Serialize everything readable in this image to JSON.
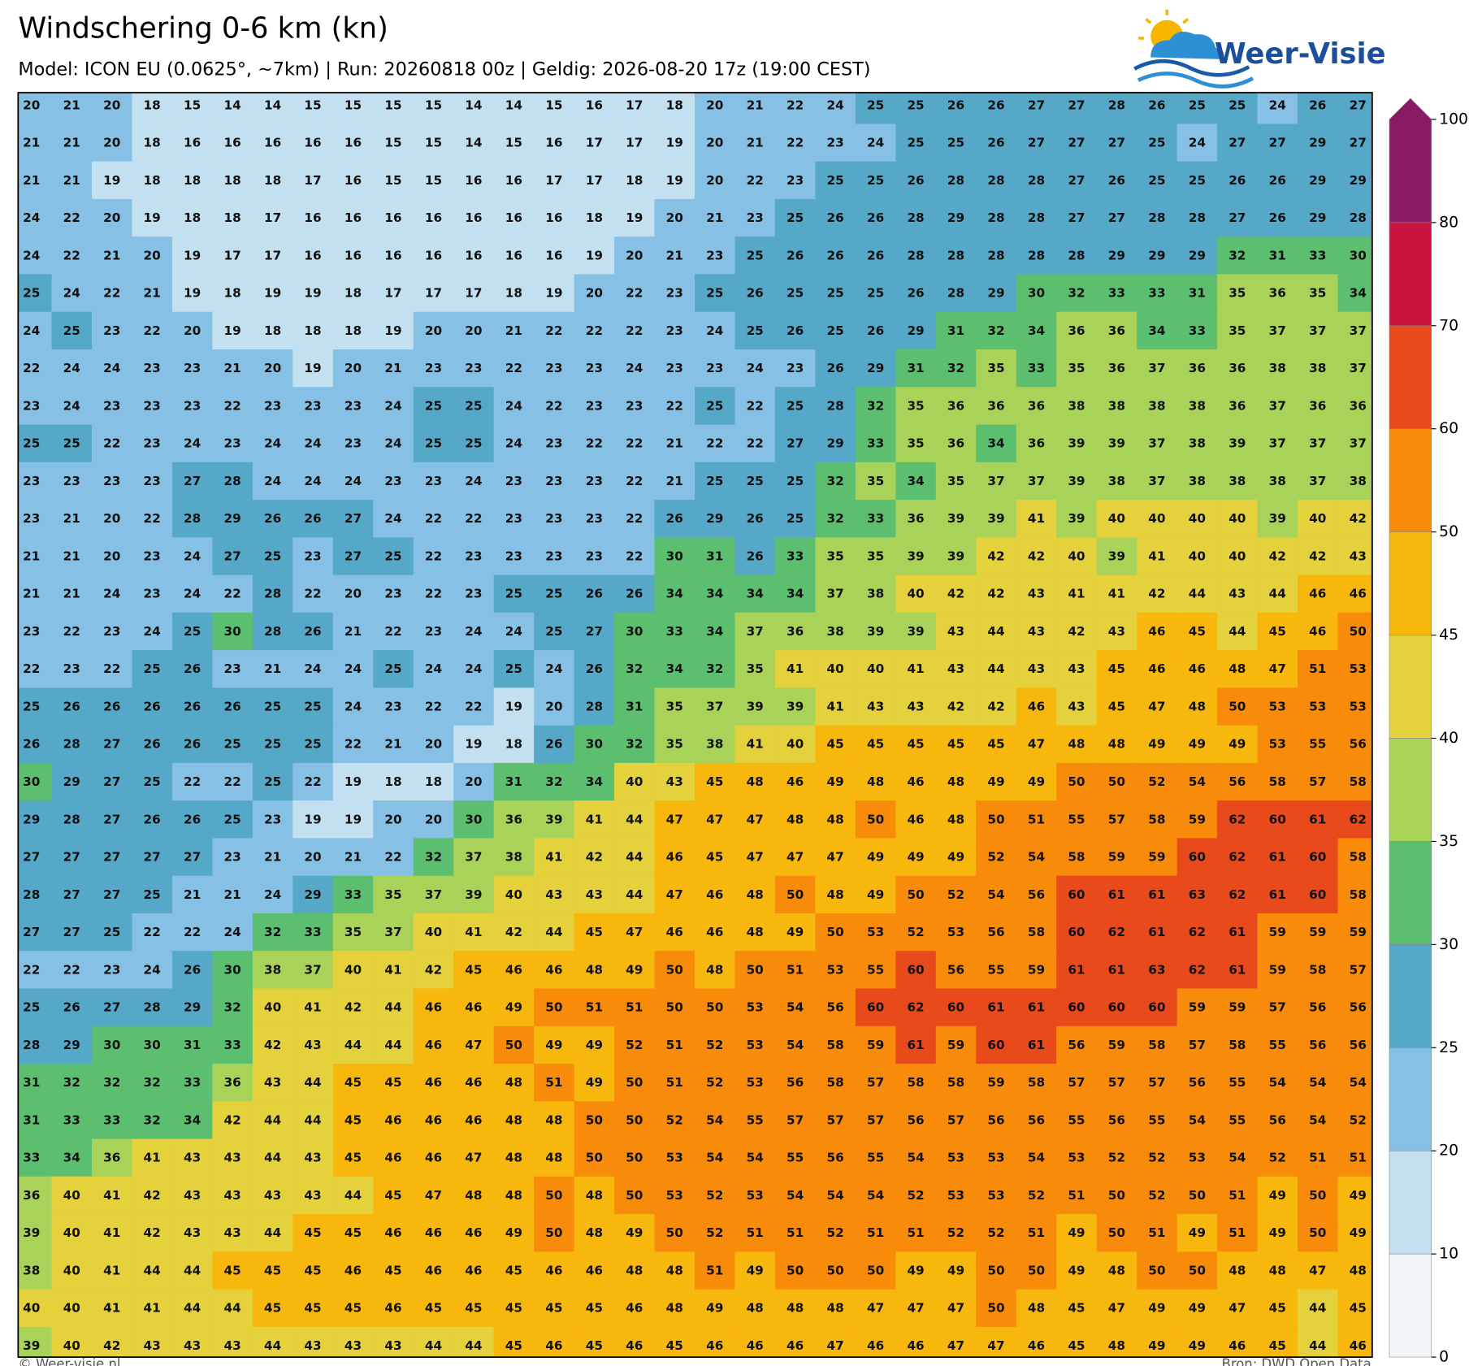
{
  "title": "Windschering 0-6 km (kn)",
  "subtitle": "Model: ICON EU (0.0625°, ~7km)  |  Run: 20260818 00z  |  Geldig: 2026-08-20 17z (19:00 CEST)",
  "logo": "Weer-Visie",
  "footer_left": "© Weer-visie.nl",
  "footer_right": "Bron: DWD Open Data",
  "colorbar": {
    "levels": [
      0,
      10,
      20,
      25,
      30,
      35,
      40,
      45,
      50,
      60,
      70,
      80,
      100
    ],
    "colors": [
      "#f2f6fa",
      "#c3e0f1",
      "#86c0e4",
      "#56a8c8",
      "#5cbf6f",
      "#a9d258",
      "#e4d13b",
      "#f8b70d",
      "#f98b0b",
      "#e94a1b",
      "#c8143f",
      "#8b1a63"
    ]
  },
  "grid": [
    [
      20,
      21,
      20,
      18,
      15,
      14,
      14,
      15,
      15,
      15,
      15,
      14,
      14,
      15,
      16,
      17,
      18,
      20,
      21,
      22,
      24,
      25,
      25,
      26,
      26,
      27,
      27,
      28,
      26,
      25,
      25,
      24,
      26,
      27
    ],
    [
      21,
      21,
      20,
      18,
      16,
      16,
      16,
      16,
      16,
      15,
      15,
      14,
      15,
      16,
      17,
      17,
      19,
      20,
      21,
      22,
      23,
      24,
      25,
      25,
      26,
      27,
      27,
      27,
      25,
      24,
      27,
      27,
      29,
      27
    ],
    [
      21,
      21,
      19,
      18,
      18,
      18,
      18,
      17,
      16,
      15,
      15,
      16,
      16,
      17,
      17,
      18,
      19,
      20,
      22,
      23,
      25,
      25,
      26,
      28,
      28,
      28,
      27,
      26,
      25,
      25,
      26,
      26,
      29,
      29
    ],
    [
      24,
      22,
      20,
      19,
      18,
      18,
      17,
      16,
      16,
      16,
      16,
      16,
      16,
      16,
      18,
      19,
      20,
      21,
      23,
      25,
      26,
      26,
      28,
      29,
      28,
      28,
      27,
      27,
      28,
      28,
      27,
      26,
      29,
      28
    ],
    [
      24,
      22,
      21,
      20,
      19,
      17,
      17,
      16,
      16,
      16,
      16,
      16,
      16,
      16,
      19,
      20,
      21,
      23,
      25,
      26,
      26,
      26,
      28,
      28,
      28,
      28,
      28,
      29,
      29,
      29,
      32,
      31,
      33,
      30
    ],
    [
      25,
      24,
      22,
      21,
      19,
      18,
      19,
      19,
      18,
      17,
      17,
      17,
      18,
      19,
      20,
      22,
      23,
      25,
      26,
      25,
      25,
      25,
      26,
      28,
      29,
      30,
      32,
      33,
      33,
      31,
      35,
      36,
      35,
      34
    ],
    [
      24,
      25,
      23,
      22,
      20,
      19,
      18,
      18,
      18,
      19,
      20,
      20,
      21,
      22,
      22,
      22,
      23,
      24,
      25,
      26,
      25,
      26,
      29,
      31,
      32,
      34,
      36,
      36,
      34,
      33,
      35,
      37,
      37,
      37
    ],
    [
      22,
      24,
      24,
      23,
      23,
      21,
      20,
      19,
      20,
      21,
      23,
      23,
      22,
      23,
      23,
      24,
      23,
      23,
      24,
      23,
      26,
      29,
      31,
      32,
      35,
      33,
      35,
      36,
      37,
      36,
      36,
      38,
      38,
      37
    ],
    [
      23,
      24,
      23,
      23,
      23,
      22,
      23,
      23,
      23,
      24,
      25,
      25,
      24,
      22,
      23,
      23,
      22,
      25,
      22,
      25,
      28,
      32,
      35,
      36,
      36,
      36,
      38,
      38,
      38,
      38,
      36,
      37,
      36,
      36
    ],
    [
      25,
      25,
      22,
      23,
      24,
      23,
      24,
      24,
      23,
      24,
      25,
      25,
      24,
      23,
      22,
      22,
      21,
      22,
      22,
      27,
      29,
      33,
      35,
      36,
      34,
      36,
      39,
      39,
      37,
      38,
      39,
      37,
      37,
      37
    ],
    [
      23,
      23,
      23,
      23,
      27,
      28,
      24,
      24,
      24,
      23,
      23,
      24,
      23,
      23,
      23,
      22,
      21,
      25,
      25,
      25,
      32,
      35,
      34,
      35,
      37,
      37,
      39,
      38,
      37,
      38,
      38,
      38,
      37,
      38
    ],
    [
      23,
      21,
      20,
      22,
      28,
      29,
      26,
      26,
      27,
      24,
      22,
      22,
      23,
      23,
      23,
      22,
      26,
      29,
      26,
      25,
      32,
      33,
      36,
      39,
      39,
      41,
      39,
      40,
      40,
      40,
      40,
      39,
      40,
      42
    ],
    [
      21,
      21,
      20,
      23,
      24,
      27,
      25,
      23,
      27,
      25,
      22,
      23,
      23,
      23,
      23,
      22,
      30,
      31,
      26,
      33,
      35,
      35,
      39,
      39,
      42,
      42,
      40,
      39,
      41,
      40,
      40,
      42,
      42,
      43
    ],
    [
      21,
      21,
      24,
      23,
      24,
      22,
      28,
      22,
      20,
      23,
      22,
      23,
      25,
      25,
      26,
      26,
      34,
      34,
      34,
      34,
      37,
      38,
      40,
      42,
      42,
      43,
      41,
      41,
      42,
      44,
      43,
      44,
      46,
      46
    ],
    [
      23,
      22,
      23,
      24,
      25,
      30,
      28,
      26,
      21,
      22,
      23,
      24,
      24,
      25,
      27,
      30,
      33,
      34,
      37,
      36,
      38,
      39,
      39,
      43,
      44,
      43,
      42,
      43,
      46,
      45,
      44,
      45,
      46,
      50
    ],
    [
      22,
      23,
      22,
      25,
      26,
      23,
      21,
      24,
      24,
      25,
      24,
      24,
      25,
      24,
      26,
      32,
      34,
      32,
      35,
      41,
      40,
      40,
      41,
      43,
      44,
      43,
      43,
      45,
      46,
      46,
      48,
      47,
      51,
      53
    ],
    [
      25,
      26,
      26,
      26,
      26,
      26,
      25,
      25,
      24,
      23,
      22,
      22,
      19,
      20,
      28,
      31,
      35,
      37,
      39,
      39,
      41,
      43,
      43,
      42,
      42,
      46,
      43,
      45,
      47,
      48,
      50,
      53,
      53,
      53
    ],
    [
      26,
      28,
      27,
      26,
      26,
      25,
      25,
      25,
      22,
      21,
      20,
      19,
      18,
      26,
      30,
      32,
      35,
      38,
      41,
      40,
      45,
      45,
      45,
      45,
      45,
      47,
      48,
      48,
      49,
      49,
      49,
      53,
      55,
      56
    ],
    [
      30,
      29,
      27,
      25,
      22,
      22,
      25,
      22,
      19,
      18,
      18,
      20,
      31,
      32,
      34,
      40,
      43,
      45,
      48,
      46,
      49,
      48,
      46,
      48,
      49,
      49,
      50,
      50,
      52,
      54,
      56,
      58,
      57,
      58
    ],
    [
      29,
      28,
      27,
      26,
      26,
      25,
      23,
      19,
      19,
      20,
      20,
      30,
      36,
      39,
      41,
      44,
      47,
      47,
      47,
      48,
      48,
      50,
      46,
      48,
      50,
      51,
      55,
      57,
      58,
      59,
      62,
      60,
      61,
      62
    ],
    [
      27,
      27,
      27,
      27,
      27,
      23,
      21,
      20,
      21,
      22,
      32,
      37,
      38,
      41,
      42,
      44,
      46,
      45,
      47,
      47,
      47,
      49,
      49,
      49,
      52,
      54,
      58,
      59,
      59,
      60,
      62,
      61,
      60,
      58
    ],
    [
      28,
      27,
      27,
      25,
      21,
      21,
      24,
      29,
      33,
      35,
      37,
      39,
      40,
      43,
      43,
      44,
      47,
      46,
      48,
      50,
      48,
      49,
      50,
      52,
      54,
      56,
      60,
      61,
      61,
      63,
      62,
      61,
      60,
      58
    ],
    [
      27,
      27,
      25,
      22,
      22,
      24,
      32,
      33,
      35,
      37,
      40,
      41,
      42,
      44,
      45,
      47,
      46,
      46,
      48,
      49,
      50,
      53,
      52,
      53,
      56,
      58,
      60,
      62,
      61,
      62,
      61,
      59,
      59,
      59
    ],
    [
      22,
      22,
      23,
      24,
      26,
      30,
      38,
      37,
      40,
      41,
      42,
      45,
      46,
      46,
      48,
      49,
      50,
      48,
      50,
      51,
      53,
      55,
      60,
      56,
      55,
      59,
      61,
      61,
      63,
      62,
      61,
      59,
      58,
      57
    ],
    [
      25,
      26,
      27,
      28,
      29,
      32,
      40,
      41,
      42,
      44,
      46,
      46,
      49,
      50,
      51,
      51,
      50,
      50,
      53,
      54,
      56,
      60,
      62,
      60,
      61,
      61,
      60,
      60,
      60,
      59,
      59,
      57,
      56,
      56
    ],
    [
      28,
      29,
      30,
      30,
      31,
      33,
      42,
      43,
      44,
      44,
      46,
      47,
      50,
      49,
      49,
      52,
      51,
      52,
      53,
      54,
      58,
      59,
      61,
      59,
      60,
      61,
      56,
      59,
      58,
      57,
      58,
      55,
      56,
      56
    ],
    [
      31,
      32,
      32,
      32,
      33,
      36,
      43,
      44,
      45,
      45,
      46,
      46,
      48,
      51,
      49,
      50,
      51,
      52,
      53,
      56,
      58,
      57,
      58,
      58,
      59,
      58,
      57,
      57,
      57,
      56,
      55,
      54,
      54,
      54
    ],
    [
      31,
      33,
      33,
      32,
      34,
      42,
      44,
      44,
      45,
      46,
      46,
      46,
      48,
      48,
      50,
      50,
      52,
      54,
      55,
      57,
      57,
      57,
      56,
      57,
      56,
      56,
      55,
      56,
      55,
      54,
      55,
      56,
      54,
      52
    ],
    [
      33,
      34,
      36,
      41,
      43,
      43,
      44,
      43,
      45,
      46,
      46,
      47,
      48,
      48,
      50,
      50,
      53,
      54,
      54,
      55,
      56,
      55,
      54,
      53,
      53,
      54,
      53,
      52,
      52,
      53,
      54,
      52,
      51,
      51
    ],
    [
      36,
      40,
      41,
      42,
      43,
      43,
      43,
      43,
      44,
      45,
      47,
      48,
      48,
      50,
      48,
      50,
      53,
      52,
      53,
      54,
      54,
      54,
      52,
      53,
      53,
      52,
      51,
      50,
      52,
      50,
      51,
      49,
      50,
      49
    ],
    [
      39,
      40,
      41,
      42,
      43,
      43,
      44,
      45,
      45,
      46,
      46,
      46,
      49,
      50,
      48,
      49,
      50,
      52,
      51,
      51,
      52,
      51,
      51,
      52,
      52,
      51,
      49,
      50,
      51,
      49,
      51,
      49,
      50,
      49
    ],
    [
      38,
      40,
      41,
      44,
      44,
      45,
      45,
      45,
      46,
      45,
      46,
      46,
      45,
      46,
      46,
      48,
      48,
      51,
      49,
      50,
      50,
      50,
      49,
      49,
      50,
      50,
      49,
      48,
      50,
      50,
      48,
      48,
      47,
      48
    ],
    [
      40,
      40,
      41,
      41,
      44,
      44,
      45,
      45,
      45,
      46,
      45,
      45,
      45,
      45,
      45,
      46,
      48,
      49,
      48,
      48,
      48,
      47,
      47,
      47,
      50,
      48,
      45,
      47,
      49,
      49,
      47,
      45,
      44,
      45
    ],
    [
      39,
      40,
      42,
      43,
      43,
      43,
      44,
      43,
      43,
      43,
      44,
      44,
      45,
      46,
      45,
      46,
      45,
      46,
      46,
      46,
      47,
      46,
      46,
      47,
      47,
      46,
      45,
      48,
      49,
      49,
      46,
      45,
      44,
      46
    ]
  ]
}
